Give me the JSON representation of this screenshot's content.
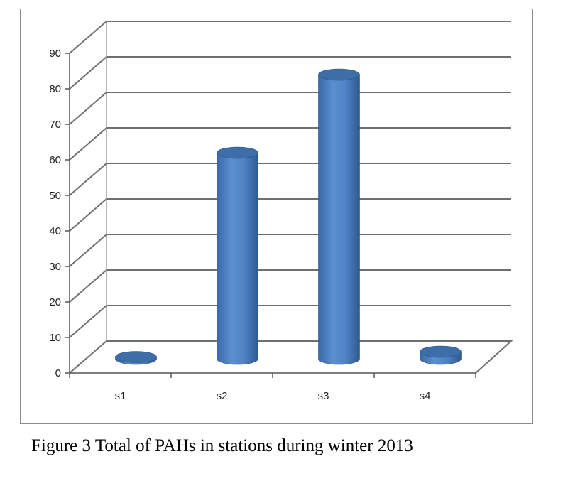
{
  "chart_data": {
    "type": "bar",
    "style": "3d-cylinder",
    "categories": [
      "s1",
      "s2",
      "s3",
      "s4"
    ],
    "values": [
      0.5,
      58,
      80,
      2
    ],
    "yticks": [
      "0",
      "10",
      "20",
      "30",
      "40",
      "50",
      "60",
      "70",
      "80",
      "90"
    ],
    "ylim": [
      0,
      90
    ],
    "title": "",
    "xlabel": "",
    "ylabel": "",
    "grid": true,
    "legend": "none",
    "colors": {
      "bar": "#4a7ebf",
      "bar_top": "#3d6ea8",
      "grid": "#6f6f6f"
    }
  },
  "caption": "Figure 3 Total  of PAHs in stations during winter 2013"
}
